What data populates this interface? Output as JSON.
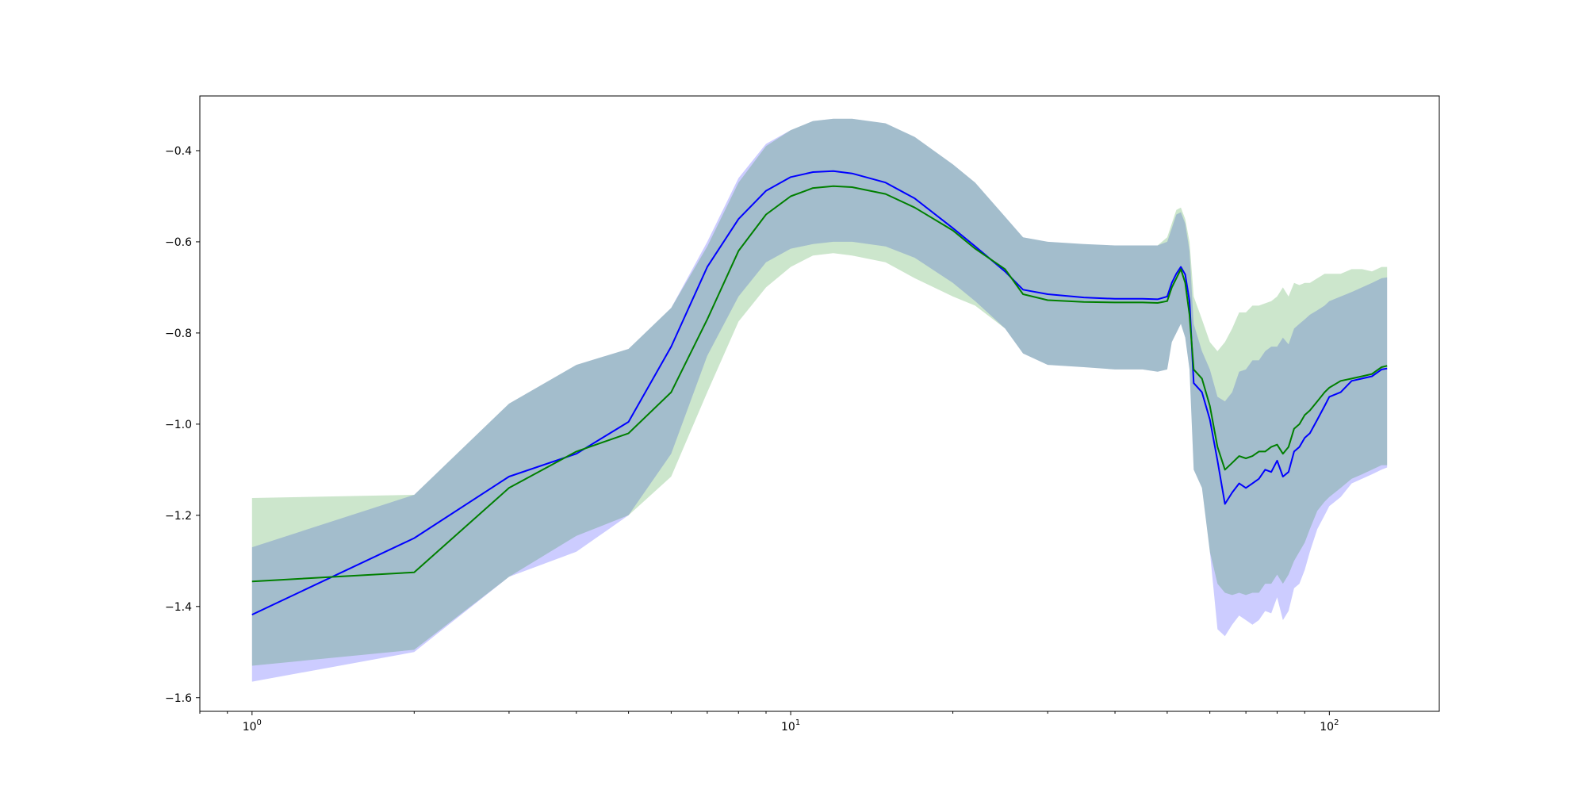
{
  "chart_data": {
    "type": "line",
    "title": "",
    "xlabel": "",
    "ylabel": "",
    "xscale": "log",
    "xlim": [
      0.8,
      160
    ],
    "ylim": [
      -1.63,
      -0.28
    ],
    "grid": false,
    "xticks": [
      {
        "value": 1,
        "base": "10",
        "exp": "0"
      },
      {
        "value": 10,
        "base": "10",
        "exp": "1"
      },
      {
        "value": 100,
        "base": "10",
        "exp": "2"
      }
    ],
    "yticks": [
      {
        "value": -0.4,
        "label": "−0.4"
      },
      {
        "value": -0.6,
        "label": "−0.6"
      },
      {
        "value": -0.8,
        "label": "−0.8"
      },
      {
        "value": -1.0,
        "label": "−1.0"
      },
      {
        "value": -1.2,
        "label": "−1.2"
      },
      {
        "value": -1.4,
        "label": "−1.4"
      },
      {
        "value": -1.6,
        "label": "−1.6"
      }
    ],
    "series": [
      {
        "color": "#0000ff",
        "band_color": "#0000ff",
        "band_opacity": 0.2,
        "x": [
          1,
          2,
          3,
          4,
          5,
          6,
          7,
          8,
          9,
          10,
          11,
          12,
          13,
          15,
          17,
          20,
          22,
          25,
          27,
          30,
          35,
          40,
          45,
          48,
          50,
          51,
          52,
          53,
          54,
          55,
          56,
          58,
          60,
          62,
          64,
          66,
          68,
          70,
          72,
          74,
          76,
          78,
          80,
          82,
          84,
          86,
          88,
          90,
          92,
          95,
          98,
          100,
          105,
          110,
          115,
          120,
          125,
          128
        ],
        "y": [
          -1.418,
          -1.25,
          -1.115,
          -1.065,
          -0.995,
          -0.83,
          -0.655,
          -0.55,
          -0.488,
          -0.458,
          -0.447,
          -0.445,
          -0.45,
          -0.47,
          -0.505,
          -0.57,
          -0.61,
          -0.665,
          -0.705,
          -0.715,
          -0.722,
          -0.725,
          -0.725,
          -0.726,
          -0.72,
          -0.69,
          -0.67,
          -0.655,
          -0.672,
          -0.73,
          -0.91,
          -0.93,
          -0.99,
          -1.08,
          -1.175,
          -1.15,
          -1.13,
          -1.14,
          -1.13,
          -1.12,
          -1.1,
          -1.105,
          -1.08,
          -1.115,
          -1.105,
          -1.06,
          -1.05,
          -1.03,
          -1.02,
          -0.99,
          -0.96,
          -0.94,
          -0.93,
          -0.905,
          -0.9,
          -0.895,
          -0.88,
          -0.878
        ],
        "upper": [
          -1.27,
          -1.155,
          -0.955,
          -0.87,
          -0.835,
          -0.745,
          -0.6,
          -0.46,
          -0.385,
          -0.355,
          -0.335,
          -0.33,
          -0.33,
          -0.34,
          -0.37,
          -0.43,
          -0.47,
          -0.545,
          -0.59,
          -0.6,
          -0.605,
          -0.608,
          -0.608,
          -0.608,
          -0.6,
          -0.57,
          -0.54,
          -0.535,
          -0.56,
          -0.62,
          -0.78,
          -0.84,
          -0.88,
          -0.94,
          -0.95,
          -0.93,
          -0.885,
          -0.88,
          -0.86,
          -0.86,
          -0.84,
          -0.83,
          -0.83,
          -0.81,
          -0.825,
          -0.79,
          -0.78,
          -0.77,
          -0.76,
          -0.75,
          -0.74,
          -0.73,
          -0.72,
          -0.71,
          -0.7,
          -0.69,
          -0.68,
          -0.678
        ],
        "lower": [
          -1.565,
          -1.5,
          -1.335,
          -1.28,
          -1.2,
          -1.065,
          -0.85,
          -0.72,
          -0.645,
          -0.615,
          -0.605,
          -0.6,
          -0.6,
          -0.61,
          -0.635,
          -0.69,
          -0.73,
          -0.79,
          -0.845,
          -0.87,
          -0.875,
          -0.88,
          -0.88,
          -0.885,
          -0.88,
          -0.82,
          -0.8,
          -0.78,
          -0.81,
          -0.88,
          -1.1,
          -1.14,
          -1.28,
          -1.45,
          -1.465,
          -1.44,
          -1.42,
          -1.43,
          -1.44,
          -1.43,
          -1.41,
          -1.415,
          -1.38,
          -1.43,
          -1.41,
          -1.36,
          -1.35,
          -1.32,
          -1.28,
          -1.23,
          -1.2,
          -1.18,
          -1.16,
          -1.13,
          -1.12,
          -1.11,
          -1.1,
          -1.095
        ]
      },
      {
        "color": "#007f00",
        "band_color": "#008000",
        "band_opacity": 0.2,
        "x": [
          1,
          2,
          3,
          4,
          5,
          6,
          7,
          8,
          9,
          10,
          11,
          12,
          13,
          15,
          17,
          20,
          22,
          25,
          27,
          30,
          35,
          40,
          45,
          48,
          50,
          51,
          52,
          53,
          54,
          55,
          56,
          58,
          60,
          62,
          64,
          66,
          68,
          70,
          72,
          74,
          76,
          78,
          80,
          82,
          84,
          86,
          88,
          90,
          92,
          95,
          98,
          100,
          105,
          110,
          115,
          120,
          125,
          128
        ],
        "y": [
          -1.345,
          -1.325,
          -1.14,
          -1.06,
          -1.02,
          -0.93,
          -0.77,
          -0.62,
          -0.54,
          -0.5,
          -0.482,
          -0.478,
          -0.48,
          -0.495,
          -0.525,
          -0.575,
          -0.615,
          -0.66,
          -0.715,
          -0.728,
          -0.732,
          -0.733,
          -0.733,
          -0.734,
          -0.73,
          -0.7,
          -0.68,
          -0.66,
          -0.69,
          -0.76,
          -0.88,
          -0.9,
          -0.96,
          -1.05,
          -1.1,
          -1.085,
          -1.07,
          -1.075,
          -1.07,
          -1.06,
          -1.06,
          -1.05,
          -1.045,
          -1.065,
          -1.05,
          -1.01,
          -1.0,
          -0.98,
          -0.97,
          -0.95,
          -0.93,
          -0.92,
          -0.905,
          -0.9,
          -0.895,
          -0.89,
          -0.875,
          -0.872
        ],
        "upper": [
          -1.162,
          -1.155,
          -0.955,
          -0.87,
          -0.835,
          -0.745,
          -0.61,
          -0.47,
          -0.39,
          -0.355,
          -0.335,
          -0.33,
          -0.33,
          -0.34,
          -0.37,
          -0.43,
          -0.47,
          -0.545,
          -0.59,
          -0.6,
          -0.605,
          -0.608,
          -0.608,
          -0.608,
          -0.59,
          -0.56,
          -0.53,
          -0.525,
          -0.55,
          -0.6,
          -0.72,
          -0.77,
          -0.82,
          -0.84,
          -0.82,
          -0.79,
          -0.755,
          -0.755,
          -0.74,
          -0.74,
          -0.735,
          -0.73,
          -0.72,
          -0.7,
          -0.72,
          -0.69,
          -0.695,
          -0.69,
          -0.69,
          -0.68,
          -0.67,
          -0.67,
          -0.67,
          -0.66,
          -0.66,
          -0.665,
          -0.655,
          -0.655
        ],
        "lower": [
          -1.53,
          -1.495,
          -1.335,
          -1.245,
          -1.2,
          -1.115,
          -0.93,
          -0.775,
          -0.7,
          -0.655,
          -0.63,
          -0.625,
          -0.63,
          -0.645,
          -0.68,
          -0.72,
          -0.74,
          -0.79,
          -0.845,
          -0.87,
          -0.875,
          -0.88,
          -0.88,
          -0.885,
          -0.88,
          -0.82,
          -0.8,
          -0.78,
          -0.81,
          -0.88,
          -1.1,
          -1.14,
          -1.28,
          -1.35,
          -1.37,
          -1.375,
          -1.37,
          -1.375,
          -1.37,
          -1.37,
          -1.35,
          -1.35,
          -1.33,
          -1.35,
          -1.33,
          -1.3,
          -1.28,
          -1.26,
          -1.23,
          -1.19,
          -1.17,
          -1.16,
          -1.14,
          -1.12,
          -1.11,
          -1.1,
          -1.09,
          -1.09
        ]
      }
    ]
  }
}
